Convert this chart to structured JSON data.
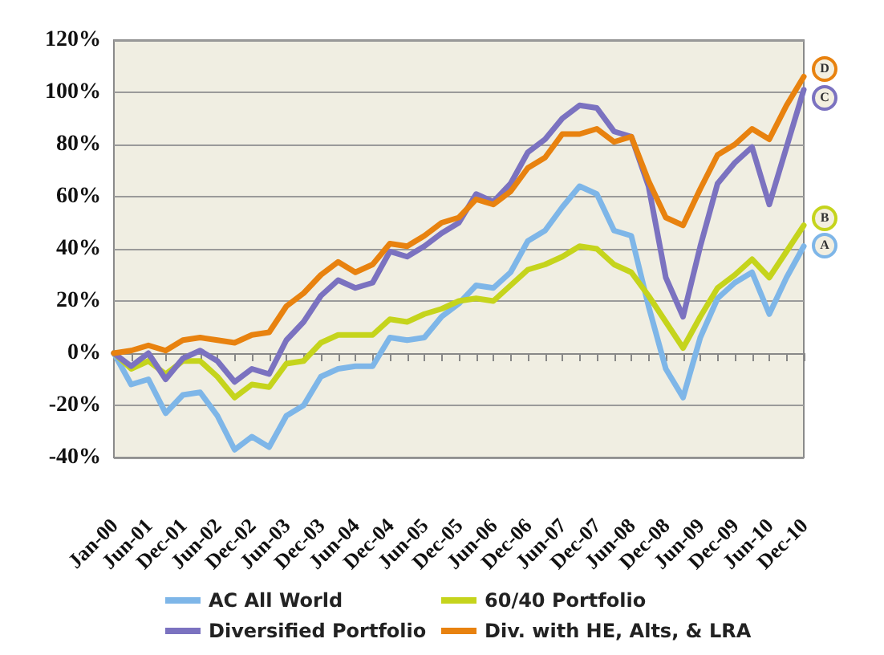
{
  "chart_data": {
    "type": "line",
    "categories": [
      "Jan-00",
      null,
      "Jun-01",
      null,
      "Dec-01",
      null,
      "Jun-02",
      null,
      "Dec-02",
      null,
      "Jun-03",
      null,
      "Dec-03",
      null,
      "Jun-04",
      null,
      "Dec-04",
      null,
      "Jun-05",
      null,
      "Dec-05",
      null,
      "Jun-06",
      null,
      "Dec-06",
      null,
      "Jun-07",
      null,
      "Dec-07",
      null,
      "Jun-08",
      null,
      "Dec-08",
      null,
      "Jun-09",
      null,
      "Dec-09",
      null,
      "Jun-10",
      null,
      "Dec-10"
    ],
    "series": [
      {
        "name": "AC All World",
        "color": "#7eb6e8",
        "values": [
          0,
          -12,
          -10,
          -23,
          -16,
          -15,
          -24,
          -37,
          -32,
          -36,
          -24,
          -20,
          -9,
          -6,
          -5,
          -5,
          6,
          5,
          6,
          14,
          19,
          26,
          25,
          31,
          43,
          47,
          56,
          64,
          61,
          47,
          45,
          18,
          -6,
          -17,
          6,
          21,
          27,
          31,
          15,
          29,
          41
        ]
      },
      {
        "name": "60/40 Portfolio",
        "color": "#c5d41c",
        "values": [
          0,
          -6,
          -3,
          -8,
          -3,
          -3,
          -9,
          -17,
          -12,
          -13,
          -4,
          -3,
          4,
          7,
          7,
          7,
          13,
          12,
          15,
          17,
          20,
          21,
          20,
          26,
          32,
          34,
          37,
          41,
          40,
          34,
          31,
          22,
          12,
          2,
          14,
          25,
          30,
          36,
          29,
          39,
          49
        ]
      },
      {
        "name": "Diversified Portfolio",
        "color": "#7b72c0",
        "values": [
          0,
          -5,
          0,
          -10,
          -2,
          1,
          -3,
          -11,
          -6,
          -8,
          5,
          12,
          22,
          28,
          25,
          27,
          39,
          37,
          41,
          46,
          50,
          61,
          58,
          65,
          77,
          82,
          90,
          95,
          94,
          85,
          83,
          64,
          29,
          14,
          41,
          65,
          73,
          79,
          57,
          79,
          101
        ]
      },
      {
        "name": "Div. with HE, Alts, & LRA",
        "color": "#e8820f",
        "values": [
          0,
          1,
          3,
          1,
          5,
          6,
          5,
          4,
          7,
          8,
          18,
          23,
          30,
          35,
          31,
          34,
          42,
          41,
          45,
          50,
          52,
          59,
          57,
          62,
          71,
          75,
          84,
          84,
          86,
          81,
          83,
          66,
          52,
          49,
          63,
          76,
          80,
          86,
          82,
          95,
          106
        ]
      }
    ],
    "annotations": [
      {
        "text": "A",
        "x": "Dec-10",
        "y": 41
      },
      {
        "text": "B",
        "x": "Dec-10",
        "y": 52
      },
      {
        "text": "C",
        "x": "Dec-10",
        "y": 98
      },
      {
        "text": "D",
        "x": "Dec-10",
        "y": 109
      }
    ],
    "ylim": [
      -40,
      120
    ],
    "yticks": [
      {
        "value": -40,
        "label": "-40%"
      },
      {
        "value": -20,
        "label": "-20%"
      },
      {
        "value": 0,
        "label": "0%"
      },
      {
        "value": 20,
        "label": "20%"
      },
      {
        "value": 40,
        "label": "40%"
      },
      {
        "value": 60,
        "label": "60%"
      },
      {
        "value": 80,
        "label": "80%"
      },
      {
        "value": 100,
        "label": "100%"
      },
      {
        "value": 120,
        "label": "120%"
      }
    ],
    "grid": "y",
    "legend": "bottom",
    "marker": "none",
    "line_style": "solid"
  }
}
